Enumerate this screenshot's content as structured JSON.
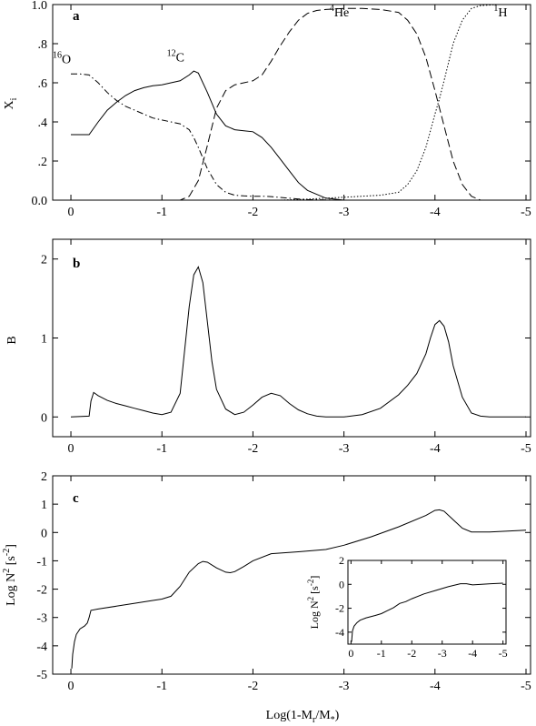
{
  "figure": {
    "xlabel_main": "Log(1-M",
    "xlabel_sub_r": "r",
    "xlabel_mid": "/M",
    "xlabel_sub_star": "*",
    "xlabel_end": ")"
  },
  "chart_data": [
    {
      "type": "line",
      "panel_label": "a",
      "ylabel": "X",
      "ylabel_sub": "i",
      "xlim": [
        0.2,
        -5.05
      ],
      "ylim": [
        0,
        1
      ],
      "x_ticks": [
        0,
        -1,
        -2,
        -3,
        -4,
        -5
      ],
      "x_tick_labels": [
        "0",
        "-1",
        "-2",
        "-3",
        "-4",
        "-5"
      ],
      "y_ticks": [
        0,
        0.2,
        0.4,
        0.6,
        0.8,
        1.0
      ],
      "y_tick_labels": [
        "0.0",
        ".2",
        ".4",
        ".6",
        ".8",
        "1.0"
      ],
      "annotations": [
        {
          "sup": "16",
          "text": "O",
          "x": 0.1,
          "y": 0.7
        },
        {
          "sup": "12",
          "text": "C",
          "x": -1.15,
          "y": 0.71
        },
        {
          "sup": "4",
          "text": "He",
          "x": -2.95,
          "y": 0.94
        },
        {
          "sup": "1",
          "text": "H",
          "x": -4.72,
          "y": 0.94
        }
      ],
      "series": [
        {
          "style": "dashdot",
          "x": [
            0,
            -0.1,
            -0.2,
            -0.3,
            -0.4,
            -0.5,
            -0.6,
            -0.7,
            -0.8,
            -0.9,
            -1.0,
            -1.1,
            -1.2,
            -1.3,
            -1.35,
            -1.4,
            -1.5,
            -1.6,
            -1.7,
            -1.8,
            -1.9,
            -2.0,
            -2.1,
            -2.2,
            -2.3,
            -2.4,
            -2.5,
            -2.6,
            -3.0,
            -5.0
          ],
          "y": [
            0.645,
            0.645,
            0.64,
            0.6,
            0.55,
            0.51,
            0.48,
            0.46,
            0.44,
            0.42,
            0.41,
            0.4,
            0.39,
            0.36,
            0.32,
            0.27,
            0.16,
            0.08,
            0.04,
            0.025,
            0.022,
            0.02,
            0.02,
            0.018,
            0.014,
            0.01,
            0.006,
            0.003,
            0.0,
            0.0
          ]
        },
        {
          "style": "solid",
          "x": [
            0,
            -0.2,
            -0.3,
            -0.4,
            -0.5,
            -0.6,
            -0.7,
            -0.8,
            -0.9,
            -1.0,
            -1.1,
            -1.2,
            -1.3,
            -1.35,
            -1.4,
            -1.5,
            -1.6,
            -1.7,
            -1.8,
            -1.9,
            -2.0,
            -2.1,
            -2.2,
            -2.3,
            -2.4,
            -2.5,
            -2.6,
            -2.8,
            -3.0,
            -5.0
          ],
          "y": [
            0.335,
            0.335,
            0.4,
            0.46,
            0.5,
            0.535,
            0.56,
            0.575,
            0.585,
            0.59,
            0.6,
            0.61,
            0.64,
            0.66,
            0.65,
            0.55,
            0.44,
            0.38,
            0.36,
            0.355,
            0.35,
            0.32,
            0.27,
            0.21,
            0.15,
            0.09,
            0.05,
            0.01,
            0.0,
            0.0
          ]
        },
        {
          "style": "dashed",
          "x": [
            0,
            -1.2,
            -1.3,
            -1.4,
            -1.5,
            -1.6,
            -1.7,
            -1.8,
            -1.9,
            -2.0,
            -2.1,
            -2.2,
            -2.3,
            -2.4,
            -2.5,
            -2.6,
            -2.7,
            -2.8,
            -3.0,
            -3.2,
            -3.4,
            -3.6,
            -3.7,
            -3.8,
            -3.9,
            -4.0,
            -4.05,
            -4.1,
            -4.2,
            -4.3,
            -4.4,
            -4.5,
            -5.0
          ],
          "y": [
            0.0,
            0.0,
            0.02,
            0.1,
            0.28,
            0.47,
            0.56,
            0.59,
            0.6,
            0.61,
            0.64,
            0.71,
            0.79,
            0.86,
            0.92,
            0.955,
            0.97,
            0.975,
            0.98,
            0.98,
            0.975,
            0.96,
            0.92,
            0.85,
            0.73,
            0.56,
            0.47,
            0.38,
            0.2,
            0.08,
            0.02,
            0.0,
            0.0
          ]
        },
        {
          "style": "dotted",
          "x": [
            0,
            -2.3,
            -2.6,
            -2.8,
            -3.0,
            -3.2,
            -3.4,
            -3.6,
            -3.7,
            -3.8,
            -3.9,
            -4.0,
            -4.05,
            -4.1,
            -4.2,
            -4.3,
            -4.4,
            -4.5,
            -4.7,
            -5.0
          ],
          "y": [
            0.0,
            0.0,
            0.005,
            0.01,
            0.015,
            0.02,
            0.025,
            0.04,
            0.08,
            0.15,
            0.27,
            0.44,
            0.52,
            0.61,
            0.8,
            0.92,
            0.98,
            0.995,
            1.0,
            1.0
          ]
        }
      ]
    },
    {
      "type": "line",
      "panel_label": "b",
      "ylabel": "B",
      "xlim": [
        0.2,
        -5.05
      ],
      "ylim": [
        -0.25,
        2.25
      ],
      "x_ticks": [
        0,
        -1,
        -2,
        -3,
        -4,
        -5
      ],
      "x_tick_labels": [
        "0",
        "-1",
        "-2",
        "-3",
        "-4",
        "-5"
      ],
      "y_ticks": [
        0,
        1,
        2
      ],
      "y_tick_labels": [
        "0",
        "1",
        "2"
      ],
      "series": [
        {
          "style": "solid",
          "x": [
            0.0,
            -0.2,
            -0.22,
            -0.25,
            -0.3,
            -0.4,
            -0.5,
            -0.6,
            -0.7,
            -0.8,
            -0.9,
            -1.0,
            -1.1,
            -1.2,
            -1.25,
            -1.3,
            -1.35,
            -1.4,
            -1.45,
            -1.5,
            -1.55,
            -1.6,
            -1.7,
            -1.8,
            -1.9,
            -2.0,
            -2.1,
            -2.2,
            -2.3,
            -2.4,
            -2.5,
            -2.6,
            -2.7,
            -2.8,
            -2.9,
            -3.0,
            -3.2,
            -3.4,
            -3.6,
            -3.7,
            -3.8,
            -3.9,
            -3.95,
            -4.0,
            -4.05,
            -4.1,
            -4.15,
            -4.2,
            -4.3,
            -4.4,
            -4.5,
            -4.6,
            -5.0
          ],
          "y": [
            0.0,
            0.01,
            0.2,
            0.31,
            0.27,
            0.21,
            0.17,
            0.14,
            0.11,
            0.08,
            0.05,
            0.03,
            0.06,
            0.3,
            0.85,
            1.4,
            1.8,
            1.9,
            1.7,
            1.2,
            0.7,
            0.35,
            0.1,
            0.03,
            0.06,
            0.15,
            0.25,
            0.3,
            0.27,
            0.17,
            0.09,
            0.04,
            0.01,
            0.0,
            0.0,
            0.0,
            0.03,
            0.11,
            0.28,
            0.4,
            0.55,
            0.8,
            1.0,
            1.17,
            1.22,
            1.15,
            0.95,
            0.65,
            0.25,
            0.05,
            0.01,
            0.0,
            0.0
          ]
        }
      ]
    },
    {
      "type": "line",
      "panel_label": "c",
      "ylabel": "Log N",
      "ylabel_sup": "2",
      "ylabel_unit": " [s",
      "ylabel_unit_sup": "-2",
      "ylabel_unit_end": "]",
      "xlim": [
        0.2,
        -5.05
      ],
      "ylim": [
        -5,
        2
      ],
      "x_ticks": [
        0,
        -1,
        -2,
        -3,
        -4,
        -5
      ],
      "x_tick_labels": [
        "0",
        "-1",
        "-2",
        "-3",
        "-4",
        "-5"
      ],
      "y_ticks": [
        -5,
        -4,
        -3,
        -2,
        -1,
        0,
        1,
        2
      ],
      "y_tick_labels": [
        "-5",
        "-4",
        "-3",
        "-2",
        "-1",
        "0",
        "1",
        "2"
      ],
      "series": [
        {
          "style": "solid",
          "x": [
            -0.01,
            -0.02,
            -0.04,
            -0.06,
            -0.1,
            -0.15,
            -0.18,
            -0.2,
            -0.22,
            -0.3,
            -0.5,
            -0.7,
            -0.9,
            -1.0,
            -1.1,
            -1.2,
            -1.3,
            -1.4,
            -1.45,
            -1.5,
            -1.6,
            -1.7,
            -1.75,
            -1.8,
            -1.9,
            -2.0,
            -2.2,
            -2.5,
            -2.8,
            -3.0,
            -3.3,
            -3.6,
            -3.9,
            -4.0,
            -4.05,
            -4.1,
            -4.2,
            -4.3,
            -4.4,
            -4.6,
            -4.8,
            -5.0
          ],
          "y": [
            -4.8,
            -4.3,
            -3.85,
            -3.6,
            -3.4,
            -3.3,
            -3.2,
            -3.0,
            -2.75,
            -2.7,
            -2.6,
            -2.5,
            -2.4,
            -2.35,
            -2.25,
            -1.9,
            -1.4,
            -1.1,
            -1.02,
            -1.05,
            -1.25,
            -1.4,
            -1.42,
            -1.38,
            -1.2,
            -1.0,
            -0.75,
            -0.68,
            -0.6,
            -0.45,
            -0.15,
            0.2,
            0.6,
            0.78,
            0.8,
            0.75,
            0.45,
            0.15,
            0.02,
            0.02,
            0.05,
            0.08
          ]
        }
      ],
      "inset": {
        "type": "line",
        "ylabel": "Log N",
        "ylabel_sup": "2",
        "ylabel_unit": " [s",
        "ylabel_unit_sup": "-2",
        "ylabel_unit_end": "]",
        "xlim": [
          0.1,
          -5.1
        ],
        "ylim": [
          -5,
          2
        ],
        "x_ticks": [
          0,
          -1,
          -2,
          -3,
          -4,
          -5
        ],
        "x_tick_labels": [
          "0",
          "-1",
          "-2",
          "-3",
          "-4",
          "-5"
        ],
        "y_ticks": [
          -4,
          -2,
          0,
          2
        ],
        "y_tick_labels": [
          "-4",
          "-2",
          "0",
          "2"
        ],
        "series": [
          {
            "style": "solid",
            "x": [
              -0.02,
              -0.05,
              -0.1,
              -0.2,
              -0.3,
              -0.5,
              -0.8,
              -1.0,
              -1.2,
              -1.4,
              -1.6,
              -1.8,
              -2.0,
              -2.4,
              -2.8,
              -3.2,
              -3.6,
              -3.8,
              -4.0,
              -4.3,
              -4.6,
              -5.0
            ],
            "y": [
              -4.8,
              -3.9,
              -3.5,
              -3.2,
              -3.0,
              -2.8,
              -2.6,
              -2.45,
              -2.2,
              -1.95,
              -1.6,
              -1.45,
              -1.2,
              -0.8,
              -0.5,
              -0.2,
              0.05,
              0.05,
              -0.05,
              0.0,
              0.05,
              0.1
            ]
          }
        ]
      }
    }
  ]
}
